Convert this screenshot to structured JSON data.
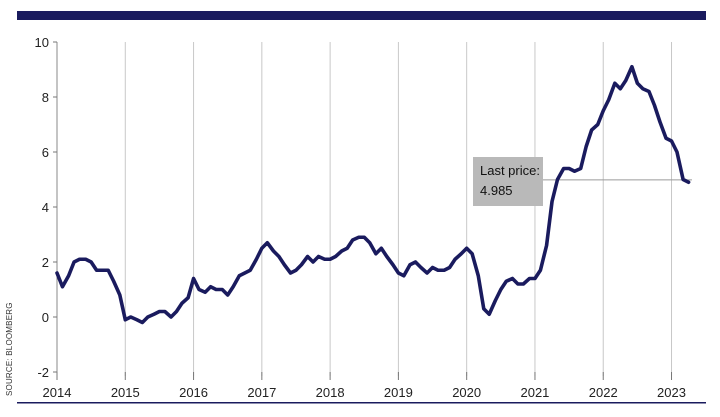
{
  "chart_data": {
    "type": "line",
    "title": "",
    "xlabel": "",
    "ylabel": "",
    "source": "SOURCE: BLOOMBERG",
    "xlim": [
      2014,
      2023.3
    ],
    "ylim": [
      -2,
      10
    ],
    "y_ticks": [
      10,
      8,
      6,
      4,
      2,
      0,
      -2
    ],
    "x_ticks": [
      2014,
      2015,
      2016,
      2017,
      2018,
      2019,
      2020,
      2021,
      2022,
      2023
    ],
    "grid": "vertical lines at each year",
    "colors": {
      "line": "#1a1b5e",
      "top_bar": "#1a1b5e",
      "grid": "#c8c8c8",
      "callout_bg": "#b9b9b9"
    },
    "callout": {
      "line1": "Last price:",
      "line2": "4.985",
      "value": 4.985
    },
    "series": [
      {
        "x": [
          2014.0,
          2014.08,
          2014.17,
          2014.25,
          2014.33,
          2014.42,
          2014.5,
          2014.58,
          2014.67,
          2014.75,
          2014.83,
          2014.92,
          2015.0,
          2015.08,
          2015.17,
          2015.25,
          2015.33,
          2015.42,
          2015.5,
          2015.58,
          2015.67,
          2015.75,
          2015.83,
          2015.92,
          2016.0,
          2016.08,
          2016.17,
          2016.25,
          2016.33,
          2016.42,
          2016.5,
          2016.58,
          2016.67,
          2016.75,
          2016.83,
          2016.92,
          2017.0,
          2017.08,
          2017.17,
          2017.25,
          2017.33,
          2017.42,
          2017.5,
          2017.58,
          2017.67,
          2017.75,
          2017.83,
          2017.92,
          2018.0,
          2018.08,
          2018.17,
          2018.25,
          2018.33,
          2018.42,
          2018.5,
          2018.58,
          2018.67,
          2018.75,
          2018.83,
          2018.92,
          2019.0,
          2019.08,
          2019.17,
          2019.25,
          2019.33,
          2019.42,
          2019.5,
          2019.58,
          2019.67,
          2019.75,
          2019.83,
          2019.92,
          2020.0,
          2020.08,
          2020.17,
          2020.25,
          2020.33,
          2020.42,
          2020.5,
          2020.58,
          2020.67,
          2020.75,
          2020.83,
          2020.92,
          2021.0,
          2021.08,
          2021.17,
          2021.25,
          2021.33,
          2021.42,
          2021.5,
          2021.58,
          2021.67,
          2021.75,
          2021.83,
          2021.92,
          2022.0,
          2022.08,
          2022.17,
          2022.25,
          2022.33,
          2022.42,
          2022.5,
          2022.58,
          2022.67,
          2022.75,
          2022.83,
          2022.92,
          2023.0,
          2023.08,
          2023.17,
          2023.25
        ],
        "y": [
          1.6,
          1.1,
          1.5,
          2.0,
          2.1,
          2.1,
          2.0,
          1.7,
          1.7,
          1.7,
          1.3,
          0.8,
          -0.1,
          0.0,
          -0.1,
          -0.2,
          0.0,
          0.1,
          0.2,
          0.2,
          0.0,
          0.2,
          0.5,
          0.7,
          1.4,
          1.0,
          0.9,
          1.1,
          1.0,
          1.0,
          0.8,
          1.1,
          1.5,
          1.6,
          1.7,
          2.1,
          2.5,
          2.7,
          2.4,
          2.2,
          1.9,
          1.6,
          1.7,
          1.9,
          2.2,
          2.0,
          2.2,
          2.1,
          2.1,
          2.2,
          2.4,
          2.5,
          2.8,
          2.9,
          2.9,
          2.7,
          2.3,
          2.5,
          2.2,
          1.9,
          1.6,
          1.5,
          1.9,
          2.0,
          1.8,
          1.6,
          1.8,
          1.7,
          1.7,
          1.8,
          2.1,
          2.3,
          2.5,
          2.3,
          1.5,
          0.3,
          0.1,
          0.6,
          1.0,
          1.3,
          1.4,
          1.2,
          1.2,
          1.4,
          1.4,
          1.7,
          2.6,
          4.2,
          5.0,
          5.4,
          5.4,
          5.3,
          5.4,
          6.2,
          6.8,
          7.0,
          7.5,
          7.9,
          8.5,
          8.3,
          8.6,
          9.1,
          8.5,
          8.3,
          8.2,
          7.7,
          7.1,
          6.5,
          6.4,
          6.0,
          5.0,
          4.9
        ]
      }
    ]
  }
}
